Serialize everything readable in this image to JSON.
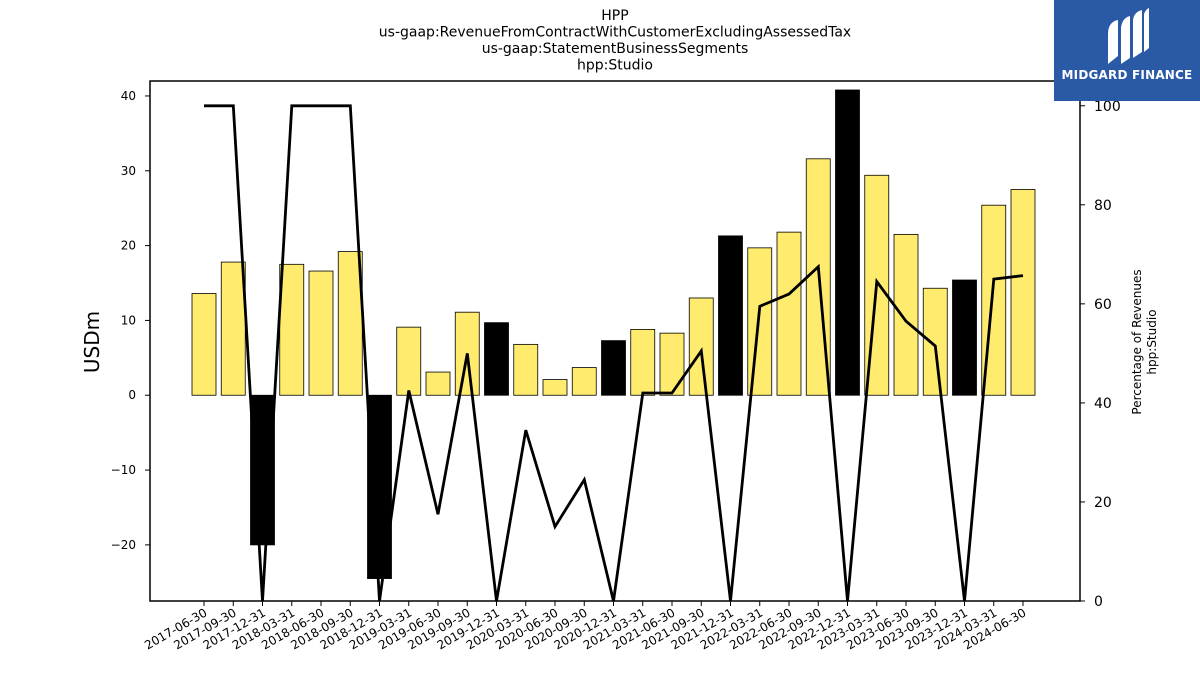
{
  "chart_data": {
    "type": "bar",
    "title_lines": [
      "HPP",
      "us-gaap:RevenueFromContractWithCustomerExcludingAssessedTax",
      "us-gaap:StatementBusinessSegments",
      "hpp:Studio"
    ],
    "ylabel": "USDm",
    "ylabel_right": [
      "Percentage of Revenues",
      "hpp:Studio"
    ],
    "ylim": [
      -27.5,
      42
    ],
    "ylim_right": [
      0,
      105
    ],
    "yticks": [
      -20,
      -10,
      0,
      10,
      20,
      30,
      40
    ],
    "yticks_right": [
      0,
      20,
      40,
      60,
      80,
      100
    ],
    "categories": [
      "2017-06-30",
      "2017-09-30",
      "2017-12-31",
      "2018-03-31",
      "2018-06-30",
      "2018-09-30",
      "2018-12-31",
      "2019-03-31",
      "2019-06-30",
      "2019-09-30",
      "2019-12-31",
      "2020-03-31",
      "2020-06-30",
      "2020-09-30",
      "2020-12-31",
      "2021-03-31",
      "2021-06-30",
      "2021-09-30",
      "2021-12-31",
      "2022-03-31",
      "2022-06-30",
      "2022-09-30",
      "2022-12-31",
      "2023-03-31",
      "2023-06-30",
      "2023-09-30",
      "2023-12-31",
      "2024-03-31",
      "2024-06-30"
    ],
    "series": [
      {
        "kind": "bar",
        "values": [
          13.6,
          17.8,
          -20.0,
          17.5,
          16.6,
          19.2,
          -24.5,
          9.1,
          3.1,
          11.1,
          9.7,
          6.8,
          2.1,
          3.7,
          7.3,
          8.8,
          8.3,
          13.0,
          21.3,
          19.7,
          21.8,
          31.6,
          40.8,
          29.4,
          21.5,
          14.3,
          15.4,
          25.4,
          27.5
        ],
        "colors": [
          "#ffeb6e",
          "#ffeb6e",
          "#000000",
          "#ffeb6e",
          "#ffeb6e",
          "#ffeb6e",
          "#000000",
          "#ffeb6e",
          "#ffeb6e",
          "#ffeb6e",
          "#000000",
          "#ffeb6e",
          "#ffeb6e",
          "#ffeb6e",
          "#000000",
          "#ffeb6e",
          "#ffeb6e",
          "#ffeb6e",
          "#000000",
          "#ffeb6e",
          "#ffeb6e",
          "#ffeb6e",
          "#000000",
          "#ffeb6e",
          "#ffeb6e",
          "#ffeb6e",
          "#000000",
          "#ffeb6e",
          "#ffeb6e"
        ]
      },
      {
        "kind": "line",
        "axis": "right",
        "color": "#000000",
        "values": [
          100,
          100,
          0,
          100,
          100,
          100,
          0,
          42.5,
          17.5,
          50,
          0,
          34.5,
          15,
          24.5,
          0,
          42,
          42,
          50.5,
          0,
          59.5,
          62,
          67.5,
          0,
          64.5,
          56.5,
          51.5,
          0,
          65,
          65.7
        ]
      }
    ],
    "grid": false,
    "legend": "none"
  },
  "logo": {
    "text": "MIDGARD FINANCE",
    "bg_color": "#2a59a6"
  }
}
